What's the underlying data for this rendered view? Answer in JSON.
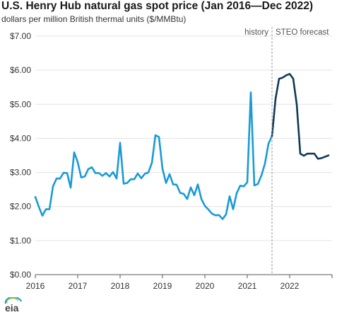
{
  "title": "U.S. Henry Hub natural gas spot price (Jan 2016—Dec 2022)",
  "subtitle": "dollars per million British thermal units ($/MMBtu)",
  "logo_text": "eia",
  "colors": {
    "history": "#1a9ad6",
    "forecast": "#0e3a57",
    "grid": "#e3e3e3",
    "axis": "#555555",
    "divider": "#999999"
  },
  "chart_data": {
    "type": "line",
    "title": "U.S. Henry Hub natural gas spot price (Jan 2016—Dec 2022)",
    "ylabel": "dollars per million British thermal units ($/MMBtu)",
    "xlabel": "",
    "ylim": [
      0,
      7
    ],
    "xlim": [
      "2016-01",
      "2022-12"
    ],
    "y_ticks": [
      "$0.00",
      "$1.00",
      "$2.00",
      "$3.00",
      "$4.00",
      "$5.00",
      "$6.00",
      "$7.00"
    ],
    "y_tick_values": [
      0,
      1,
      2,
      3,
      4,
      5,
      6,
      7
    ],
    "x_ticks": [
      "2016",
      "2017",
      "2018",
      "2019",
      "2020",
      "2021",
      "2022"
    ],
    "grid": true,
    "annotations": [
      {
        "text": "history",
        "at": "2021-08",
        "side": "left"
      },
      {
        "text": "STEO forecast",
        "at": "2021-08",
        "side": "right"
      }
    ],
    "series": [
      {
        "name": "history",
        "x": [
          "2016-01",
          "2016-02",
          "2016-03",
          "2016-04",
          "2016-05",
          "2016-06",
          "2016-07",
          "2016-08",
          "2016-09",
          "2016-10",
          "2016-11",
          "2016-12",
          "2017-01",
          "2017-02",
          "2017-03",
          "2017-04",
          "2017-05",
          "2017-06",
          "2017-07",
          "2017-08",
          "2017-09",
          "2017-10",
          "2017-11",
          "2017-12",
          "2018-01",
          "2018-02",
          "2018-03",
          "2018-04",
          "2018-05",
          "2018-06",
          "2018-07",
          "2018-08",
          "2018-09",
          "2018-10",
          "2018-11",
          "2018-12",
          "2019-01",
          "2019-02",
          "2019-03",
          "2019-04",
          "2019-05",
          "2019-06",
          "2019-07",
          "2019-08",
          "2019-09",
          "2019-10",
          "2019-11",
          "2019-12",
          "2020-01",
          "2020-02",
          "2020-03",
          "2020-04",
          "2020-05",
          "2020-06",
          "2020-07",
          "2020-08",
          "2020-09",
          "2020-10",
          "2020-11",
          "2020-12",
          "2021-01",
          "2021-02",
          "2021-03",
          "2021-04",
          "2021-05",
          "2021-06",
          "2021-07",
          "2021-08"
        ],
        "values": [
          2.28,
          1.99,
          1.73,
          1.92,
          1.92,
          2.59,
          2.82,
          2.82,
          2.99,
          2.98,
          2.55,
          3.59,
          3.3,
          2.85,
          2.88,
          3.1,
          3.15,
          2.98,
          2.98,
          2.9,
          2.98,
          2.88,
          3.01,
          2.82,
          3.87,
          2.67,
          2.69,
          2.8,
          2.8,
          2.97,
          2.83,
          2.96,
          3.0,
          3.28,
          4.09,
          4.04,
          3.11,
          2.69,
          2.95,
          2.65,
          2.64,
          2.4,
          2.37,
          2.22,
          2.56,
          2.33,
          2.65,
          2.22,
          2.02,
          1.91,
          1.79,
          1.74,
          1.75,
          1.63,
          1.77,
          2.3,
          1.92,
          2.39,
          2.61,
          2.59,
          2.71,
          5.35,
          2.62,
          2.66,
          2.91,
          3.26,
          3.84,
          4.07
        ]
      },
      {
        "name": "STEO forecast",
        "x": [
          "2021-08",
          "2021-09",
          "2021-10",
          "2021-11",
          "2021-12",
          "2022-01",
          "2022-02",
          "2022-03",
          "2022-04",
          "2022-05",
          "2022-06",
          "2022-07",
          "2022-08",
          "2022-09",
          "2022-10",
          "2022-11",
          "2022-12"
        ],
        "values": [
          4.07,
          5.16,
          5.75,
          5.78,
          5.85,
          5.89,
          5.75,
          5.0,
          3.55,
          3.49,
          3.55,
          3.55,
          3.55,
          3.4,
          3.42,
          3.46,
          3.5
        ]
      }
    ]
  }
}
